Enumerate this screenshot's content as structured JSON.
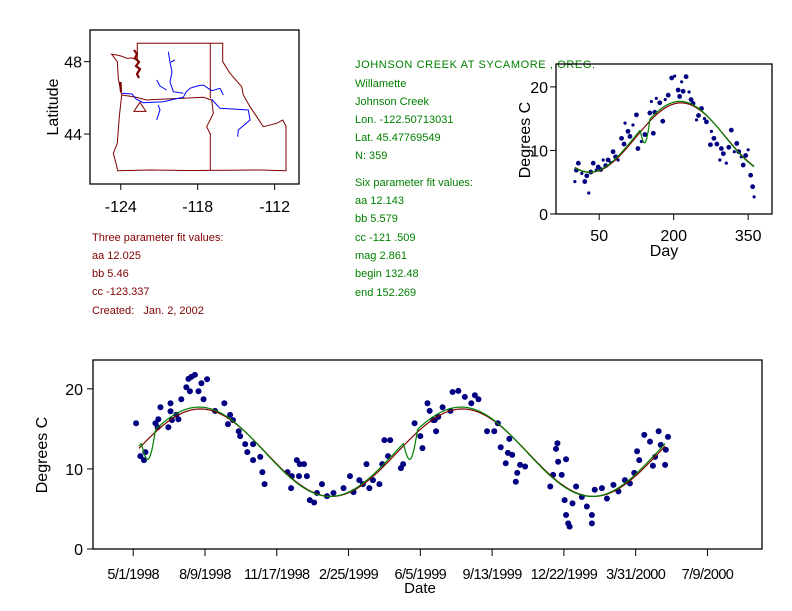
{
  "colors": {
    "points": "#000080",
    "three_param_fit": "#800000",
    "six_param_fit": "#008000",
    "state_borders": "#800000",
    "rivers": "#0000ff",
    "axes": "#000000"
  },
  "site_info": {
    "title": "JOHNSON CREEK AT SYCAMORE , OREG.",
    "basin": "Willamette",
    "stream": "Johnson Creek",
    "lon_text": "Lon. -122.50713031",
    "lat_text": "Lat. 45.47769549",
    "n_text": "N: 359",
    "lon": -122.50713031,
    "lat": 45.47769549
  },
  "six_param": {
    "heading": "Six parameter fit values:",
    "aa_text": "aa 12.143",
    "bb_text": "bb 5.579",
    "cc_text": "cc -121 .509",
    "mag_text": "mag 2.861",
    "begin_text": "begin 132.48",
    "end_text": "end 152.269",
    "aa": 12.143,
    "bb": 5.579,
    "cc": -121.509,
    "mag": 2.861,
    "begin": 132.48,
    "end": 152.269
  },
  "three_param": {
    "heading": "Three parameter fit values:",
    "aa_text": "aa 12.025",
    "bb_text": "bb 5.46",
    "cc_text": "cc -123.337",
    "created_text": "Created:   Jan. 2, 2002",
    "aa": 12.025,
    "bb": 5.46,
    "cc": -123.337
  },
  "chart_data": [
    {
      "type": "map",
      "ylabel": "Latitude",
      "x_ticks": [
        "-124",
        "-118",
        "-112"
      ],
      "y_ticks": [
        "48",
        "44"
      ],
      "xlim": [
        -126.4,
        -110.1
      ],
      "ylim": [
        41.24,
        49.75
      ],
      "marker": "triangle at site location"
    },
    {
      "type": "scatter",
      "xlabel": "Day",
      "ylabel": "Degrees C",
      "x_ticks": [
        "50",
        "200",
        "350"
      ],
      "y_ticks": [
        "0",
        "10",
        "20"
      ],
      "xlim": [
        -37,
        398
      ],
      "ylim": [
        0,
        23.6
      ],
      "points": [
        [
          1,
          5.1
        ],
        [
          4,
          6.9
        ],
        [
          8,
          8.0
        ],
        [
          15,
          6.4
        ],
        [
          21,
          5.1
        ],
        [
          25,
          6.0
        ],
        [
          29,
          3.3
        ],
        [
          33,
          6.6
        ],
        [
          38,
          8.0
        ],
        [
          44,
          6.9
        ],
        [
          48,
          7.4
        ],
        [
          53,
          7.0
        ],
        [
          58,
          8.5
        ],
        [
          63,
          7.6
        ],
        [
          68,
          8.5
        ],
        [
          73,
          8.1
        ],
        [
          78,
          9.8
        ],
        [
          83,
          9.0
        ],
        [
          88,
          8.5
        ],
        [
          95,
          11.9
        ],
        [
          100,
          11.0
        ],
        [
          102,
          14.3
        ],
        [
          108,
          13.0
        ],
        [
          112,
          12.2
        ],
        [
          118,
          14.0
        ],
        [
          125,
          15.6
        ],
        [
          128,
          10.3
        ],
        [
          135,
          11.4
        ],
        [
          142,
          12.5
        ],
        [
          152,
          15.9
        ],
        [
          155,
          17.7
        ],
        [
          159,
          12.7
        ],
        [
          162,
          16.0
        ],
        [
          165,
          18.2
        ],
        [
          172,
          17.5
        ],
        [
          178,
          14.6
        ],
        [
          183,
          18.0
        ],
        [
          189,
          18.7
        ],
        [
          196,
          21.4
        ],
        [
          202,
          21.7
        ],
        [
          209,
          19.5
        ],
        [
          212,
          18.5
        ],
        [
          216,
          20.8
        ],
        [
          219,
          19.3
        ],
        [
          225,
          21.6
        ],
        [
          231,
          19.2
        ],
        [
          235,
          18.0
        ],
        [
          239,
          17.4
        ],
        [
          246,
          14.8
        ],
        [
          250,
          15.5
        ],
        [
          256,
          16.6
        ],
        [
          262,
          15.0
        ],
        [
          266,
          14.5
        ],
        [
          274,
          10.9
        ],
        [
          276,
          13.0
        ],
        [
          281,
          11.9
        ],
        [
          287,
          11.0
        ],
        [
          293,
          8.5
        ],
        [
          296,
          10.3
        ],
        [
          300,
          9.5
        ],
        [
          306,
          8.0
        ],
        [
          311,
          10.5
        ],
        [
          316,
          13.2
        ],
        [
          322,
          9.8
        ],
        [
          327,
          11.1
        ],
        [
          331,
          9.8
        ],
        [
          336,
          9.0
        ],
        [
          340,
          7.7
        ],
        [
          345,
          9.2
        ],
        [
          350,
          10.1
        ],
        [
          355,
          6.1
        ],
        [
          359,
          4.3
        ],
        [
          362,
          2.7
        ]
      ]
    },
    {
      "type": "scatter",
      "xlabel": "Date",
      "ylabel": "Degrees C",
      "x_ticks": [
        "5/1/1998",
        "8/9/1998",
        "11/17/1998",
        "2/25/1999",
        "6/5/1999",
        "9/13/1999",
        "12/22/1999",
        "3/31/2000",
        "7/9/2000"
      ],
      "y_ticks": [
        "0",
        "10",
        "20"
      ],
      "xlim": [
        "1998-03-06",
        "2000-09-23"
      ],
      "ylim": [
        0,
        23.6
      ],
      "points": [
        [
          "1998-05-05",
          15.7
        ],
        [
          "1998-05-11",
          11.6
        ],
        [
          "1998-05-16",
          11.1
        ],
        [
          "1998-05-18",
          12.1
        ],
        [
          "1998-06-01",
          15.7
        ],
        [
          "1998-06-04",
          15.2
        ],
        [
          "1998-06-05",
          16.2
        ],
        [
          "1998-06-08",
          17.7
        ],
        [
          "1998-06-19",
          15.2
        ],
        [
          "1998-06-22",
          18.2
        ],
        [
          "1998-06-22",
          17.2
        ],
        [
          "1998-06-24",
          16.1
        ],
        [
          "1998-06-30",
          16.75
        ],
        [
          "1998-07-03",
          16.2
        ],
        [
          "1998-07-07",
          18.7
        ],
        [
          "1998-07-14",
          20.2
        ],
        [
          "1998-07-17",
          21.25
        ],
        [
          "1998-07-19",
          19.7
        ],
        [
          "1998-07-21",
          21.5
        ],
        [
          "1998-07-26",
          21.75
        ],
        [
          "1998-07-31",
          19.7
        ],
        [
          "1998-08-04",
          20.7
        ],
        [
          "1998-08-07",
          18.7
        ],
        [
          "1998-08-12",
          21.2
        ],
        [
          "1998-08-23",
          17.25
        ],
        [
          "1998-09-05",
          18.2
        ],
        [
          "1998-09-10",
          15.6
        ],
        [
          "1998-09-13",
          16.75
        ],
        [
          "1998-09-17",
          16.1
        ],
        [
          "1998-09-25",
          14.7
        ],
        [
          "1998-09-27",
          14.1
        ],
        [
          "1998-10-04",
          13.1
        ],
        [
          "1998-10-07",
          12.1
        ],
        [
          "1998-10-15",
          13.1
        ],
        [
          "1998-10-15",
          11.1
        ],
        [
          "1998-10-25",
          11.5
        ],
        [
          "1998-10-28",
          9.6
        ],
        [
          "1998-10-31",
          8.1
        ],
        [
          "1998-12-02",
          9.6
        ],
        [
          "1998-12-07",
          7.6
        ],
        [
          "1998-12-08",
          9.1
        ],
        [
          "1998-12-15",
          11.1
        ],
        [
          "1998-12-18",
          9.1
        ],
        [
          "1998-12-19",
          10.6
        ],
        [
          "1998-12-25",
          10.6
        ],
        [
          "1998-12-29",
          9.1
        ],
        [
          "1999-01-02",
          6.1
        ],
        [
          "1999-01-08",
          5.8
        ],
        [
          "1999-01-12",
          7.0
        ],
        [
          "1999-01-19",
          8.1
        ],
        [
          "1999-01-26",
          6.6
        ],
        [
          "1999-02-04",
          7.0
        ],
        [
          "1999-02-18",
          7.6
        ],
        [
          "1999-02-27",
          9.1
        ],
        [
          "1999-03-04",
          7.1
        ],
        [
          "1999-03-12",
          8.6
        ],
        [
          "1999-03-17",
          8.1
        ],
        [
          "1999-03-22",
          10.6
        ],
        [
          "1999-03-26",
          7.6
        ],
        [
          "1999-03-31",
          8.6
        ],
        [
          "1999-04-09",
          8.1
        ],
        [
          "1999-04-13",
          10.6
        ],
        [
          "1999-04-16",
          13.6
        ],
        [
          "1999-04-21",
          11.6
        ],
        [
          "1999-04-24",
          13.6
        ],
        [
          "1999-05-09",
          10.1
        ],
        [
          "1999-05-12",
          10.6
        ],
        [
          "1999-05-28",
          15.7
        ],
        [
          "1999-06-05",
          14.1
        ],
        [
          "1999-06-08",
          12.6
        ],
        [
          "1999-06-15",
          18.2
        ],
        [
          "1999-06-18",
          17.25
        ],
        [
          "1999-06-23",
          16.1
        ],
        [
          "1999-06-25",
          16.1
        ],
        [
          "1999-06-27",
          14.7
        ],
        [
          "1999-06-30",
          16.5
        ],
        [
          "1999-07-06",
          17.7
        ],
        [
          "1999-07-17",
          17.25
        ],
        [
          "1999-07-20",
          19.6
        ],
        [
          "1999-07-28",
          19.75
        ],
        [
          "1999-08-06",
          19.0
        ],
        [
          "1999-08-15",
          18.2
        ],
        [
          "1999-08-20",
          19.2
        ],
        [
          "1999-08-25",
          18.7
        ],
        [
          "1999-09-06",
          14.7
        ],
        [
          "1999-09-16",
          14.7
        ],
        [
          "1999-09-21",
          15.7
        ],
        [
          "1999-09-25",
          12.7
        ],
        [
          "1999-10-02",
          10.7
        ],
        [
          "1999-10-05",
          12.0
        ],
        [
          "1999-10-07",
          13.75
        ],
        [
          "1999-10-11",
          11.75
        ],
        [
          "1999-10-16",
          8.4
        ],
        [
          "1999-10-18",
          9.5
        ],
        [
          "1999-10-22",
          10.5
        ],
        [
          "1999-10-29",
          10.3
        ],
        [
          "1999-12-03",
          7.8
        ],
        [
          "1999-12-07",
          9.25
        ],
        [
          "1999-12-11",
          12.5
        ],
        [
          "1999-12-13",
          13.2
        ],
        [
          "1999-12-14",
          10.9
        ],
        [
          "1999-12-19",
          9.25
        ],
        [
          "1999-12-23",
          6.1
        ],
        [
          "1999-12-25",
          11.2
        ],
        [
          "1999-12-25",
          4.25
        ],
        [
          "1999-12-28",
          3.2
        ],
        [
          "1999-12-30",
          2.8
        ],
        [
          "2000-01-03",
          5.7
        ],
        [
          "2000-01-08",
          7.8
        ],
        [
          "2000-01-16",
          6.5
        ],
        [
          "2000-01-23",
          5.3
        ],
        [
          "2000-01-30",
          4.25
        ],
        [
          "2000-01-30",
          3.2
        ],
        [
          "2000-02-03",
          7.4
        ],
        [
          "2000-02-13",
          7.6
        ],
        [
          "2000-02-20",
          6.3
        ],
        [
          "2000-02-29",
          8.0
        ],
        [
          "2000-03-07",
          7.2
        ],
        [
          "2000-03-16",
          8.6
        ],
        [
          "2000-03-23",
          8.2
        ],
        [
          "2000-03-29",
          9.5
        ],
        [
          "2000-04-02",
          12.2
        ],
        [
          "2000-04-05",
          11.1
        ],
        [
          "2000-04-12",
          14.25
        ],
        [
          "2000-04-20",
          13.4
        ],
        [
          "2000-04-24",
          10.4
        ],
        [
          "2000-04-27",
          11.5
        ],
        [
          "2000-05-02",
          14.7
        ],
        [
          "2000-05-05",
          13.0
        ],
        [
          "2000-05-11",
          10.5
        ],
        [
          "2000-05-12",
          12.4
        ],
        [
          "2000-05-15",
          14.0
        ]
      ]
    }
  ]
}
